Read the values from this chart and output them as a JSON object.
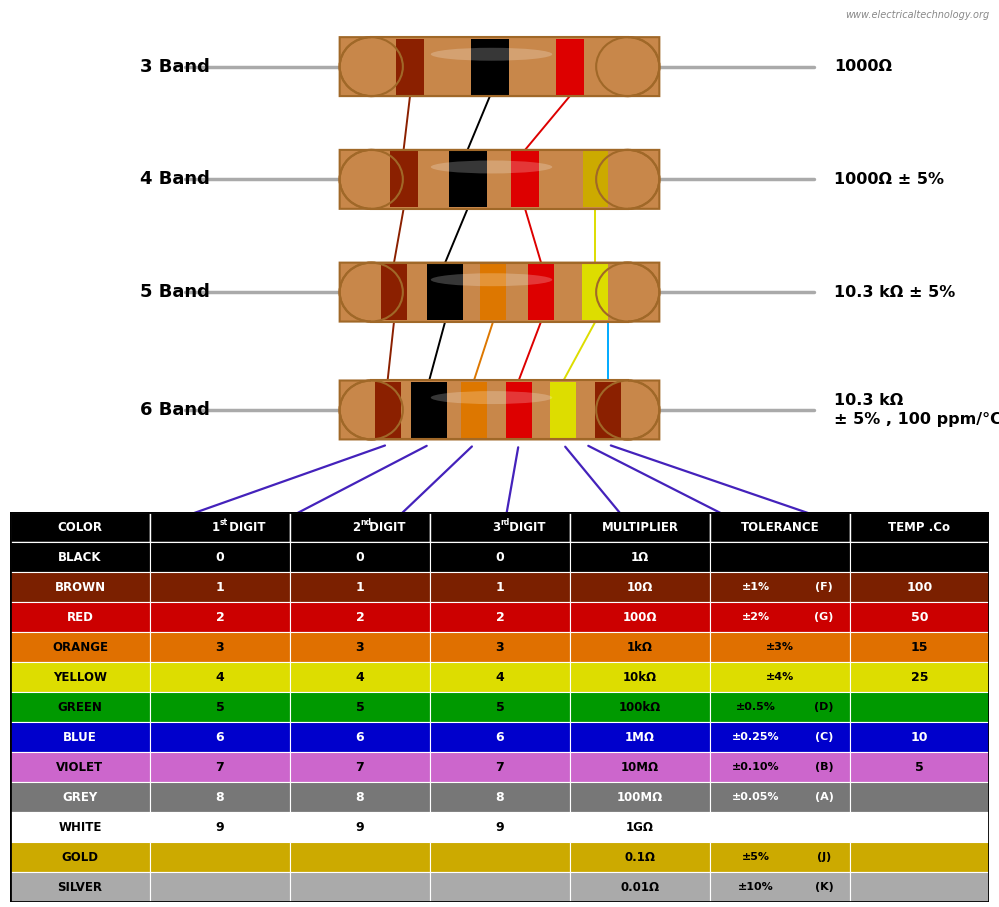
{
  "website": "www.electricaltechnology.org",
  "background_color": "#ffffff",
  "table_rows": [
    {
      "color_name": "BLACK",
      "bg": "#000000",
      "fg": "#ffffff",
      "d1": "0",
      "d2": "0",
      "d3": "0",
      "mult": "1Ω",
      "tol": "",
      "tol_code": "",
      "temp": ""
    },
    {
      "color_name": "BROWN",
      "bg": "#7B2000",
      "fg": "#ffffff",
      "d1": "1",
      "d2": "1",
      "d3": "1",
      "mult": "10Ω",
      "tol": "±1%",
      "tol_code": "(F)",
      "temp": "100"
    },
    {
      "color_name": "RED",
      "bg": "#cc0000",
      "fg": "#ffffff",
      "d1": "2",
      "d2": "2",
      "d3": "2",
      "mult": "100Ω",
      "tol": "±2%",
      "tol_code": "(G)",
      "temp": "50"
    },
    {
      "color_name": "ORANGE",
      "bg": "#e07000",
      "fg": "#000000",
      "d1": "3",
      "d2": "3",
      "d3": "3",
      "mult": "1kΩ",
      "tol": "±3%",
      "tol_code": "",
      "temp": "15"
    },
    {
      "color_name": "YELLOW",
      "bg": "#dddd00",
      "fg": "#000000",
      "d1": "4",
      "d2": "4",
      "d3": "4",
      "mult": "10kΩ",
      "tol": "±4%",
      "tol_code": "",
      "temp": "25"
    },
    {
      "color_name": "GREEN",
      "bg": "#009900",
      "fg": "#000000",
      "d1": "5",
      "d2": "5",
      "d3": "5",
      "mult": "100kΩ",
      "tol": "±0.5%",
      "tol_code": "(D)",
      "temp": ""
    },
    {
      "color_name": "BLUE",
      "bg": "#0000cc",
      "fg": "#ffffff",
      "d1": "6",
      "d2": "6",
      "d3": "6",
      "mult": "1MΩ",
      "tol": "±0.25%",
      "tol_code": "(C)",
      "temp": "10"
    },
    {
      "color_name": "VIOLET",
      "bg": "#cc66cc",
      "fg": "#000000",
      "d1": "7",
      "d2": "7",
      "d3": "7",
      "mult": "10MΩ",
      "tol": "±0.10%",
      "tol_code": "(B)",
      "temp": "5"
    },
    {
      "color_name": "GREY",
      "bg": "#777777",
      "fg": "#ffffff",
      "d1": "8",
      "d2": "8",
      "d3": "8",
      "mult": "100MΩ",
      "tol": "±0.05%",
      "tol_code": "(A)",
      "temp": ""
    },
    {
      "color_name": "WHITE",
      "bg": "#ffffff",
      "fg": "#000000",
      "d1": "9",
      "d2": "9",
      "d3": "9",
      "mult": "1GΩ",
      "tol": "",
      "tol_code": "",
      "temp": ""
    },
    {
      "color_name": "GOLD",
      "bg": "#ccaa00",
      "fg": "#000000",
      "d1": "",
      "d2": "",
      "d3": "",
      "mult": "0.1Ω",
      "tol": "±5%",
      "tol_code": "(J)",
      "temp": ""
    },
    {
      "color_name": "SILVER",
      "bg": "#aaaaaa",
      "fg": "#000000",
      "d1": "",
      "d2": "",
      "d3": "",
      "mult": "0.01Ω",
      "tol": "±10%",
      "tol_code": "(K)",
      "temp": ""
    }
  ],
  "resistor_body_color": "#C8874A",
  "resistor_body_edge": "#A06828",
  "resistor_lead_color": "#aaaaaa",
  "band_brown": "#8B2000",
  "band_black": "#000000",
  "band_red": "#dd0000",
  "band_orange": "#dd7700",
  "band_yellow": "#dddd00",
  "band_gold": "#ccaa00",
  "band_brown2": "#7B2000",
  "purple": "#4422bb"
}
